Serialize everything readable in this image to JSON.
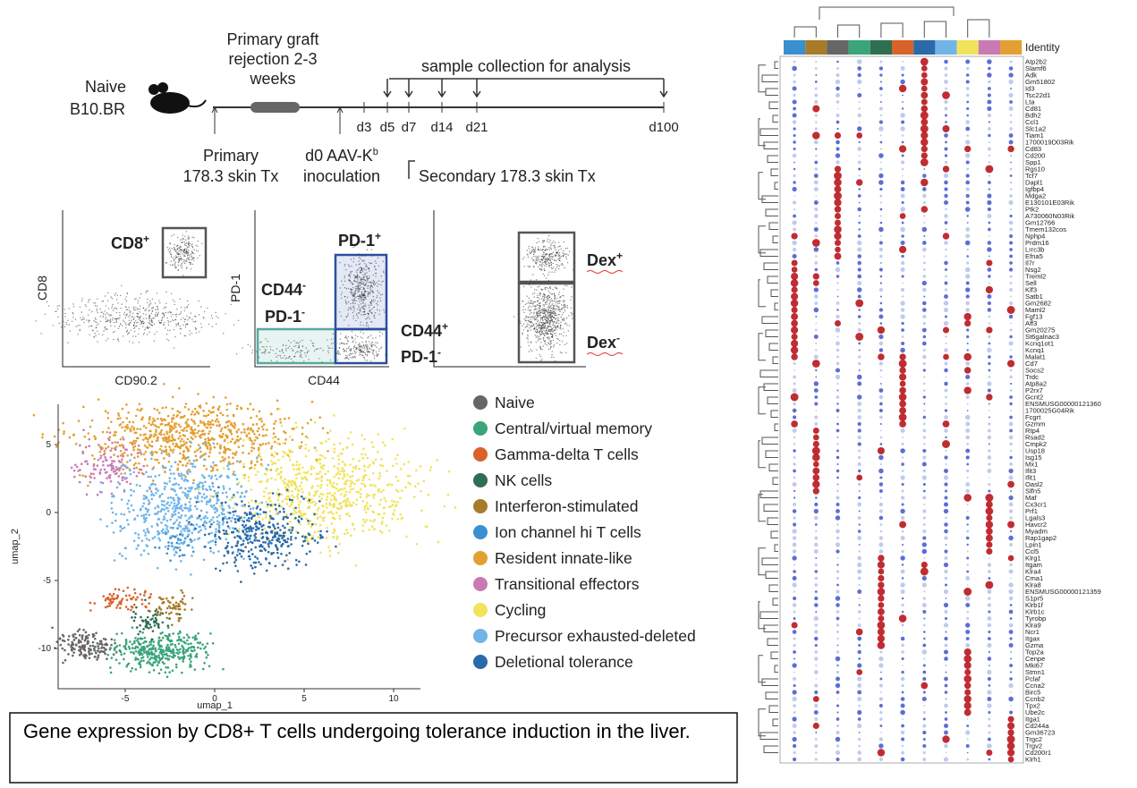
{
  "timeline": {
    "naive": "Naive",
    "strain": "B10.BR",
    "graft": [
      "Primary graft",
      "rejection 2-3",
      "weeks"
    ],
    "collection": "sample collection for analysis",
    "days": [
      "d3",
      "d5",
      "d7",
      "d14",
      "d21",
      "d100"
    ],
    "primary": [
      "Primary",
      "178.3 skin Tx"
    ],
    "inoculation": {
      "text": "d0 AAV-K",
      "sup": "b",
      "line2": "inoculation"
    },
    "secondary": "Secondary 178.3 skin Tx"
  },
  "flow": {
    "plot1": {
      "y_label": "CD8",
      "x_label": "CD90.2",
      "gate": {
        "text": "CD8",
        "sup": "+"
      }
    },
    "plot2": {
      "y_label": "PD-1",
      "x_label": "CD44",
      "gate_high": {
        "text": "PD-1",
        "sup": "+"
      },
      "gate_neg": [
        {
          "text": "CD44",
          "sup": "-"
        },
        {
          "text": "PD-1",
          "sup": "-"
        }
      ],
      "gate_pos": [
        {
          "text": "CD44",
          "sup": "+"
        },
        {
          "text": "PD-1",
          "sup": "-"
        }
      ]
    },
    "plot3": {
      "gate_pos": {
        "text": "Dex",
        "sup": "+"
      },
      "gate_neg": {
        "text": "Dex",
        "sup": "-"
      }
    }
  },
  "umap": {
    "x_label": "umap_1",
    "y_label": "umap_2",
    "xlim": [
      -8.75,
      11.5
    ],
    "ylim": [
      -12.96,
      7.96
    ],
    "xticks": [
      -5,
      0,
      5,
      10
    ],
    "yticks": [
      -10,
      -5,
      0,
      5
    ],
    "legend": [
      {
        "name": "Naive",
        "color": "#666666"
      },
      {
        "name": "Central/virtual memory",
        "color": "#3aa57a"
      },
      {
        "name": "Gamma-delta T cells",
        "color": "#d8622a"
      },
      {
        "name": "NK cells",
        "color": "#2f6e50"
      },
      {
        "name": "Interferon-stimulated",
        "color": "#a77b2a"
      },
      {
        "name": "Ion channel hi T cells",
        "color": "#3a8fd0"
      },
      {
        "name": "Resident innate-like",
        "color": "#e3a032"
      },
      {
        "name": "Transitional effectors",
        "color": "#c97ab3"
      },
      {
        "name": "Cycling",
        "color": "#f1e35a"
      },
      {
        "name": "Precursor exhausted-deleted",
        "color": "#6fb5e8"
      },
      {
        "name": "Deletional tolerance",
        "color": "#2a6aa8"
      }
    ]
  },
  "dotplot": {
    "legend_title": "Identity",
    "genes": [
      "Atp2b2",
      "Slamf6",
      "Adk",
      "Gm51802",
      "Id3",
      "Tsc22d1",
      "Lta",
      "Cd81",
      "Bdh2",
      "Ccl1",
      "Slc1a2",
      "Tiam1",
      "1700019D03Rik",
      "Cd83",
      "Cd200",
      "Spp1",
      "Rgs10",
      "Tcf7",
      "Dapl1",
      "Igfbp4",
      "Mdga2",
      "E130101E03Rik",
      "Ptk2",
      "A730060N03Rik",
      "Gm12766",
      "Tmem132cos",
      "Nphp4",
      "Prdm16",
      "Lrrc3b",
      "Efna5",
      "Il7r",
      "Nsg2",
      "Treml2",
      "Sell",
      "Klf3",
      "Satb1",
      "Gm2682",
      "Maml2",
      "Fgf13",
      "Aff3",
      "Gm20275",
      "St6galnac3",
      "Kcnq1ot1",
      "Kcnq1",
      "Malat1",
      "Cd7",
      "Socs2",
      "Trdc",
      "Atp8a2",
      "P2rx7",
      "Gcnt2",
      "ENSMUSG00000121360",
      "1700025G04Rik",
      "Fcgrt",
      "Gzmm",
      "Rtp4",
      "Rsad2",
      "Cmpk2",
      "Usp18",
      "Isg15",
      "Mx1",
      "Ifit3",
      "Ifit1",
      "Oasl2",
      "Slfn5",
      "Maf",
      "Cx3cr1",
      "Prf1",
      "Lgals3",
      "Havcr2",
      "Myadm",
      "Rap1gap2",
      "Lpin1",
      "Ccl5",
      "Klrg1",
      "Itgam",
      "Klra4",
      "Cma1",
      "Klra8",
      "ENSMUSG00000121359",
      "S1pr5",
      "Klrb1f",
      "Klrb1c",
      "Tyrobp",
      "Klra9",
      "Ncr1",
      "Itgax",
      "Gzma",
      "Top2a",
      "Cenpe",
      "Mki67",
      "Stmn1",
      "Pclaf",
      "Ccna2",
      "Birc5",
      "Ccnb2",
      "Tpx2",
      "Ube2c",
      "Itga1",
      "Cd244a",
      "Gm36723",
      "Trgc2",
      "Trgv2",
      "Cd200r1",
      "Klrh1"
    ]
  },
  "caption": "Gene expression by CD8+ T cells undergoing tolerance induction in the liver."
}
